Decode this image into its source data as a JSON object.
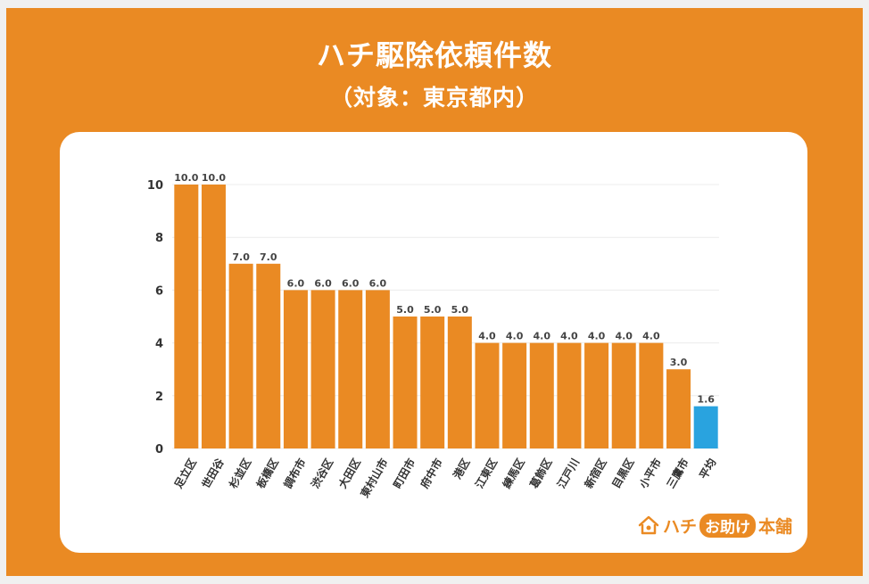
{
  "title": "ハチ駆除依頼件数",
  "subtitle": "（対象：東京都内）",
  "logo": {
    "part1": "ハチ",
    "part2": "お助け",
    "part3": "本舗"
  },
  "colors": {
    "bar": "#ea8a23",
    "highlight": "#29a3df",
    "frame": "#ea8a23"
  },
  "chart_data": {
    "type": "bar",
    "categories": [
      "足立区",
      "世田谷",
      "杉並区",
      "板橋区",
      "調布市",
      "渋谷区",
      "大田区",
      "東村山市",
      "町田市",
      "府中市",
      "港区",
      "江東区",
      "練馬区",
      "葛飾区",
      "江戸川",
      "新宿区",
      "目黒区",
      "小平市",
      "三鷹市",
      "平均"
    ],
    "values": [
      10.0,
      10.0,
      7.0,
      7.0,
      6.0,
      6.0,
      6.0,
      6.0,
      5.0,
      5.0,
      5.0,
      4.0,
      4.0,
      4.0,
      4.0,
      4.0,
      4.0,
      4.0,
      3.0,
      1.6
    ],
    "data_labels": [
      "10.0",
      "10.0",
      "7.0",
      "7.0",
      "6.0",
      "6.0",
      "6.0",
      "6.0",
      "5.0",
      "5.0",
      "5.0",
      "4.0",
      "4.0",
      "4.0",
      "4.0",
      "4.0",
      "4.0",
      "4.0",
      "3.0",
      "1.6"
    ],
    "highlight_category": "平均",
    "yticks": [
      "0",
      "2",
      "4",
      "6",
      "8",
      "10"
    ],
    "ylim": [
      0,
      10
    ],
    "grid": true,
    "legend": "none"
  }
}
